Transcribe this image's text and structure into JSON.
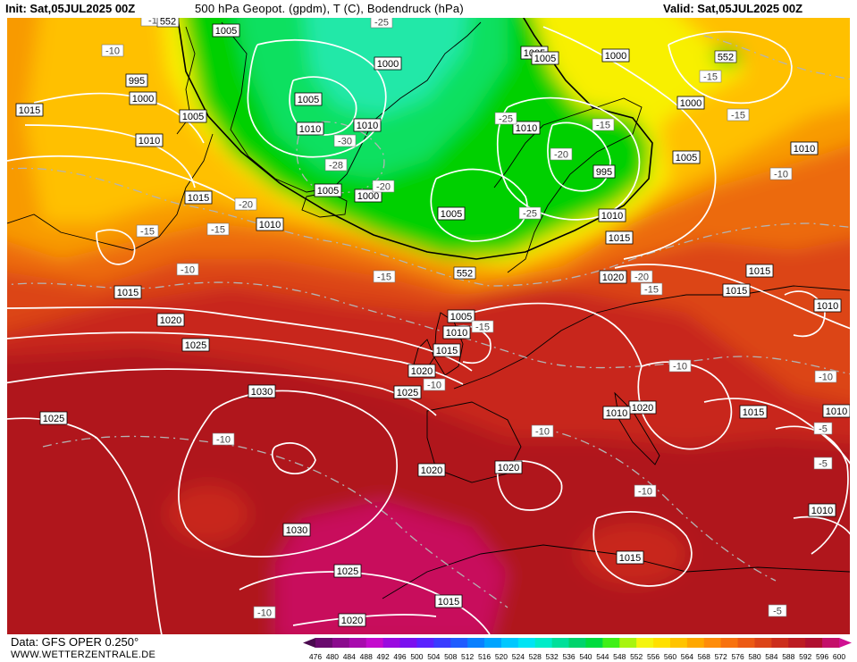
{
  "header": {
    "init": "Init: Sat,05JUL2025 00Z",
    "title": "500 hPa Geopot. (gpdm), T (C), Bodendruck (hPa)",
    "valid": "Valid: Sat,05JUL2025 00Z"
  },
  "footer": {
    "source": "Data: GFS OPER 0.250°",
    "site": "WWW.WETTERZENTRALE.DE"
  },
  "legend": {
    "ticks": [
      "476",
      "480",
      "484",
      "488",
      "492",
      "496",
      "500",
      "504",
      "508",
      "512",
      "516",
      "520",
      "524",
      "528",
      "532",
      "536",
      "540",
      "544",
      "548",
      "552",
      "556",
      "560",
      "564",
      "568",
      "572",
      "576",
      "580",
      "584",
      "588",
      "592",
      "596",
      "600"
    ],
    "colors": [
      "#4b0a4f",
      "#6a0a6e",
      "#8a0a8d",
      "#a80aad",
      "#c40acd",
      "#9a0adf",
      "#7a10ef",
      "#5a22ff",
      "#3a3cff",
      "#1f5cff",
      "#0a80ff",
      "#00a4ff",
      "#00c8ff",
      "#00e4f4",
      "#00ecc8",
      "#00e09a",
      "#00d46c",
      "#00dc3e",
      "#40f018",
      "#a8f410",
      "#f4f410",
      "#ffe000",
      "#ffc400",
      "#ffa800",
      "#ff8c0a",
      "#f8720f",
      "#ec5a14",
      "#dc4418",
      "#cc2e1c",
      "#bc1c22",
      "#b01030",
      "#c4106a",
      "#d01092"
    ]
  },
  "isobars": [
    {
      "label": "1015"
    },
    {
      "label": "995"
    },
    {
      "label": "1000"
    },
    {
      "label": "1005"
    },
    {
      "label": "1010"
    },
    {
      "label": "1015"
    },
    {
      "label": "1010"
    },
    {
      "label": "1015"
    },
    {
      "label": "1020"
    },
    {
      "label": "1025"
    },
    {
      "label": "1025"
    },
    {
      "label": "1030"
    },
    {
      "label": "1030"
    },
    {
      "label": "1025"
    },
    {
      "label": "1020"
    },
    {
      "label": "1005"
    },
    {
      "label": "1000"
    },
    {
      "label": "1005"
    },
    {
      "label": "1010"
    },
    {
      "label": "1010"
    },
    {
      "label": "1005"
    },
    {
      "label": "1000"
    },
    {
      "label": "1005"
    },
    {
      "label": "1005"
    },
    {
      "label": "1010"
    },
    {
      "label": "995"
    },
    {
      "label": "1005"
    },
    {
      "label": "1000"
    },
    {
      "label": "1000"
    },
    {
      "label": "1005"
    },
    {
      "label": "1010"
    },
    {
      "label": "1015"
    },
    {
      "label": "1010"
    },
    {
      "label": "1005"
    },
    {
      "label": "1010"
    },
    {
      "label": "1015"
    },
    {
      "label": "1020"
    },
    {
      "label": "1025"
    },
    {
      "label": "1020"
    },
    {
      "label": "1015"
    },
    {
      "label": "1015"
    },
    {
      "label": "1020"
    },
    {
      "label": "1010"
    },
    {
      "label": "1015"
    },
    {
      "label": "1015"
    },
    {
      "label": "1010"
    },
    {
      "label": "1020"
    },
    {
      "label": "1015"
    },
    {
      "label": "1010"
    },
    {
      "label": "1010"
    },
    {
      "label": "1015"
    }
  ],
  "temperatures": [
    {
      "label": "-10"
    },
    {
      "label": "-15"
    },
    {
      "label": "-15"
    },
    {
      "label": "-10"
    },
    {
      "label": "-20"
    },
    {
      "label": "-15"
    },
    {
      "label": "-25"
    },
    {
      "label": "-30"
    },
    {
      "label": "-28"
    },
    {
      "label": "-20"
    },
    {
      "label": "-25"
    },
    {
      "label": "-25"
    },
    {
      "label": "-20"
    },
    {
      "label": "-15"
    },
    {
      "label": "-15"
    },
    {
      "label": "-15"
    },
    {
      "label": "-15"
    },
    {
      "label": "-10"
    },
    {
      "label": "-20"
    },
    {
      "label": "-15"
    },
    {
      "label": "-10"
    },
    {
      "label": "-10"
    },
    {
      "label": "-15"
    },
    {
      "label": "-10"
    },
    {
      "label": "-10"
    },
    {
      "label": "-10"
    },
    {
      "label": "-10"
    },
    {
      "label": "-5"
    },
    {
      "label": "-5"
    },
    {
      "label": "-10"
    },
    {
      "label": "-5"
    },
    {
      "label": "-10"
    }
  ],
  "geopotential": [
    {
      "label": "552"
    },
    {
      "label": "552"
    },
    {
      "label": "552"
    },
    {
      "label": "552"
    }
  ],
  "colors": {
    "darkred": "#b0141c",
    "red": "#c8281c",
    "redorange": "#dc4414",
    "orange": "#ec6a0a",
    "lightorange": "#f89a00",
    "yelloworange": "#ffc000",
    "yellow": "#f8f000",
    "green": "#00d000",
    "lightgreen": "#10e060",
    "cyan": "#20e8a8",
    "magenta": "#c8105c",
    "isoline": "#ffffff",
    "coast": "#000000"
  }
}
